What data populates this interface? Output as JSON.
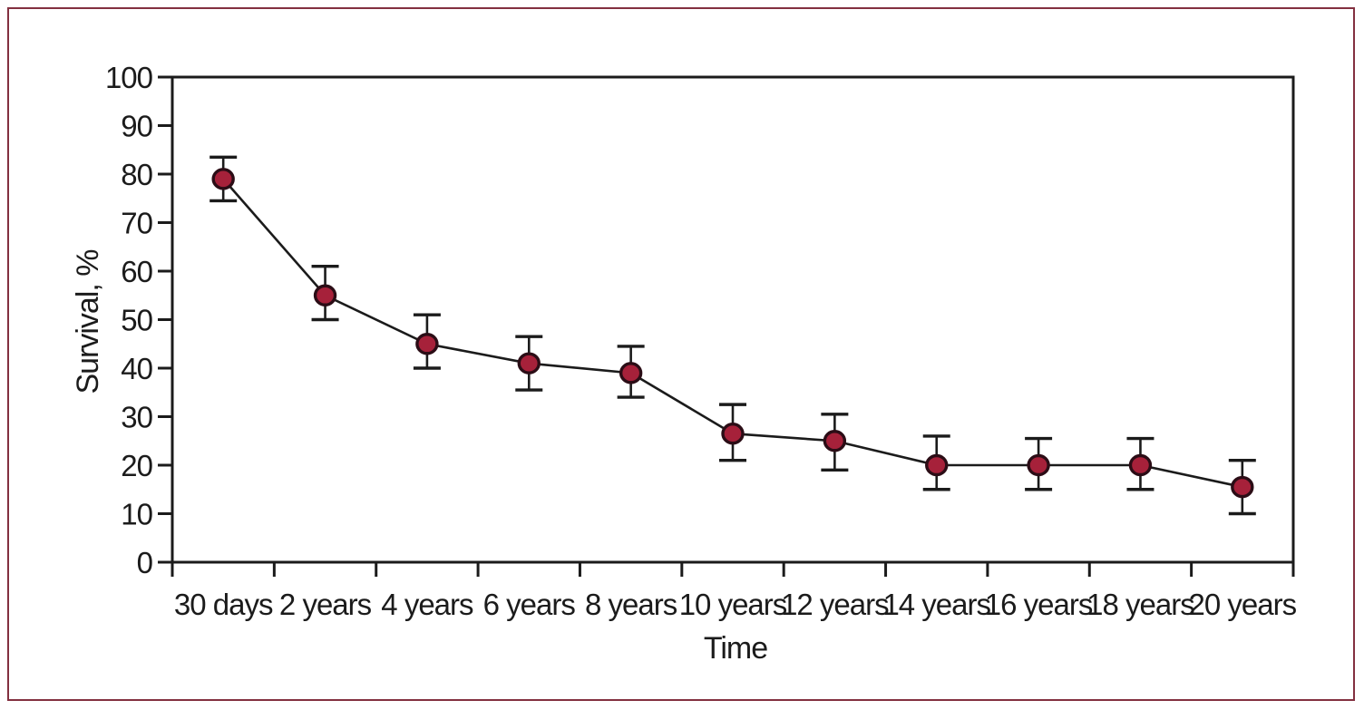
{
  "figure": {
    "border_color": "#833040",
    "background": "#FFFFFF"
  },
  "chart_data": {
    "type": "line",
    "title": "",
    "xlabel": "Time",
    "ylabel": "Survival, %",
    "categories": [
      "30 days",
      "2 years",
      "4 years",
      "6 years",
      "8 years",
      "10 years",
      "12 years",
      "14 years",
      "16 years",
      "18 years",
      "20 years"
    ],
    "series": [
      {
        "name": "Survival",
        "values": [
          79,
          55,
          45,
          41,
          39,
          26.5,
          25,
          20,
          20,
          20,
          15.5
        ],
        "error_high": [
          83.5,
          61,
          51,
          46.5,
          44.5,
          32.5,
          30.5,
          26,
          25.5,
          25.5,
          21
        ],
        "error_low": [
          74.5,
          50,
          40,
          35.5,
          34,
          21,
          19,
          15,
          15,
          15,
          10
        ]
      }
    ],
    "ylim": [
      0,
      100
    ],
    "ytick_step": 10,
    "yticks": [
      0,
      10,
      20,
      30,
      40,
      50,
      60,
      70,
      80,
      90,
      100
    ],
    "grid": false,
    "legend": false,
    "marker_shape": "circle",
    "marker_color": "#A6213A",
    "marker_edge_color": "#2B0D16",
    "line_color": "#1B1B1B",
    "axis_color": "#1B1B1B",
    "error_bars": true
  }
}
